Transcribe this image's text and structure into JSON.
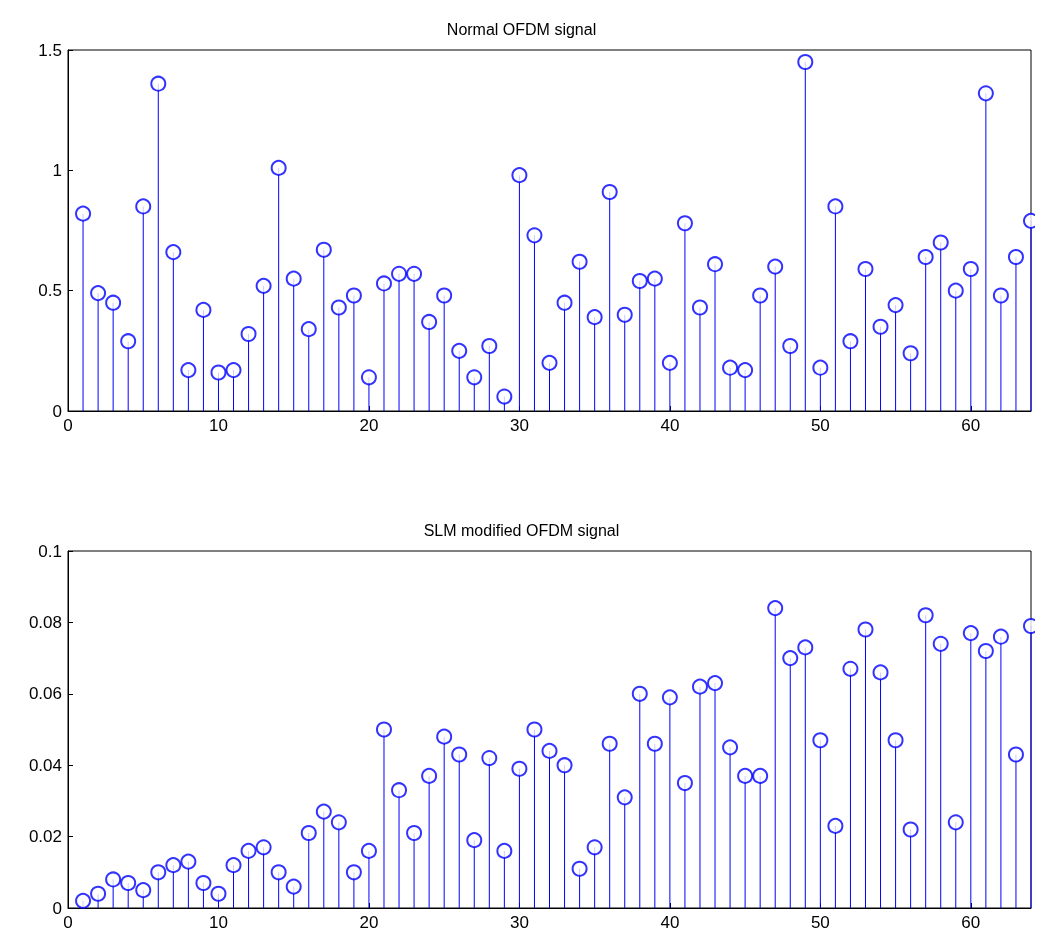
{
  "chart_data": [
    {
      "type": "lollipop",
      "title": "Normal OFDM signal",
      "marker": "circle",
      "x": [
        1,
        2,
        3,
        4,
        5,
        6,
        7,
        8,
        9,
        10,
        11,
        12,
        13,
        14,
        15,
        16,
        17,
        18,
        19,
        20,
        21,
        22,
        23,
        24,
        25,
        26,
        27,
        28,
        29,
        30,
        31,
        32,
        33,
        34,
        35,
        36,
        37,
        38,
        39,
        40,
        41,
        42,
        43,
        44,
        45,
        46,
        47,
        48,
        49,
        50,
        51,
        52,
        53,
        54,
        55,
        56,
        57,
        58,
        59,
        60,
        61,
        62,
        63,
        64
      ],
      "series": [
        {
          "color": "#0000ff",
          "values": [
            0.82,
            0.49,
            0.45,
            0.29,
            0.85,
            1.36,
            0.66,
            0.17,
            0.42,
            0.16,
            0.17,
            0.32,
            0.52,
            1.01,
            0.55,
            0.34,
            0.67,
            0.43,
            0.48,
            0.14,
            0.53,
            0.57,
            0.57,
            0.37,
            0.48,
            0.25,
            0.14,
            0.27,
            0.06,
            0.98,
            0.73,
            0.2,
            0.45,
            0.62,
            0.39,
            0.91,
            0.4,
            0.54,
            0.55,
            0.2,
            0.78,
            0.43,
            0.61,
            0.18,
            0.17,
            0.48,
            0.6,
            0.27,
            1.45,
            0.18,
            0.85,
            0.29,
            0.59,
            0.35,
            0.44,
            0.24,
            0.64,
            0.7,
            0.5,
            0.59,
            1.32,
            0.48,
            0.64,
            0.79
          ]
        }
      ],
      "xlim": [
        0,
        64
      ],
      "xticks": [
        0,
        10,
        20,
        30,
        40,
        50,
        60
      ],
      "ylim": [
        0,
        1.5
      ],
      "yticks": [
        0,
        0.5,
        1,
        1.5
      ]
    },
    {
      "type": "lollipop",
      "title": "SLM modified OFDM signal",
      "marker": "circle",
      "x": [
        1,
        2,
        3,
        4,
        5,
        6,
        7,
        8,
        9,
        10,
        11,
        12,
        13,
        14,
        15,
        16,
        17,
        18,
        19,
        20,
        21,
        22,
        23,
        24,
        25,
        26,
        27,
        28,
        29,
        30,
        31,
        32,
        33,
        34,
        35,
        36,
        37,
        38,
        39,
        40,
        41,
        42,
        43,
        44,
        45,
        46,
        47,
        48,
        49,
        50,
        51,
        52,
        53,
        54,
        55,
        56,
        57,
        58,
        59,
        60,
        61,
        62,
        63,
        64
      ],
      "series": [
        {
          "color": "#0000ff",
          "values": [
            0.002,
            0.004,
            0.008,
            0.007,
            0.005,
            0.01,
            0.012,
            0.013,
            0.007,
            0.004,
            0.012,
            0.016,
            0.017,
            0.01,
            0.006,
            0.021,
            0.027,
            0.024,
            0.01,
            0.016,
            0.05,
            0.033,
            0.021,
            0.037,
            0.048,
            0.043,
            0.019,
            0.042,
            0.016,
            0.039,
            0.05,
            0.044,
            0.04,
            0.011,
            0.017,
            0.046,
            0.031,
            0.06,
            0.046,
            0.059,
            0.035,
            0.062,
            0.063,
            0.045,
            0.037,
            0.037,
            0.084,
            0.07,
            0.073,
            0.047,
            0.023,
            0.067,
            0.078,
            0.066,
            0.047,
            0.022,
            0.082,
            0.074,
            0.024,
            0.077,
            0.072,
            0.076,
            0.043,
            0.079
          ]
        }
      ],
      "xlim": [
        0,
        64
      ],
      "xticks": [
        0,
        10,
        20,
        30,
        40,
        50,
        60
      ],
      "ylim": [
        0,
        0.1
      ],
      "yticks": [
        0,
        0.02,
        0.04,
        0.06,
        0.08,
        0.1
      ]
    }
  ]
}
